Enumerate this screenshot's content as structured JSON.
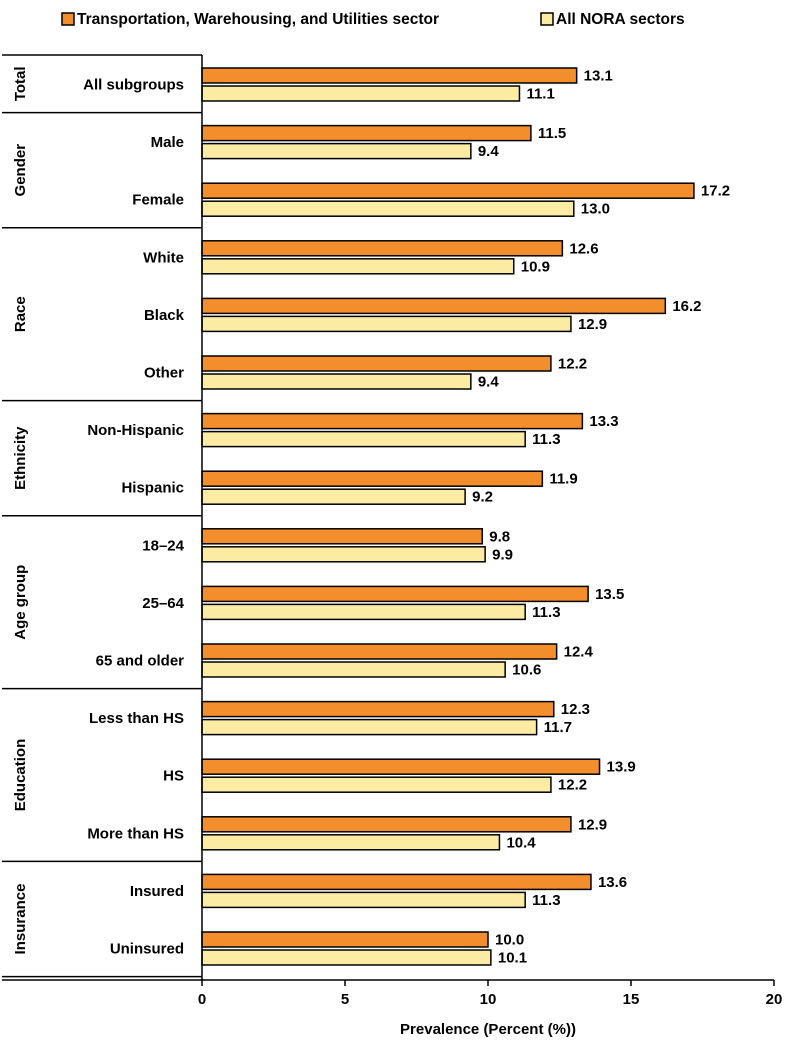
{
  "chart_data": {
    "type": "bar",
    "orientation": "horizontal",
    "xlabel": "Prevalence (Percent (%))",
    "xlim": [
      0,
      20
    ],
    "xticks": [
      0,
      5,
      10,
      15,
      20
    ],
    "legend_position": "top",
    "grid": false,
    "series": [
      {
        "name": "Transportation, Warehousing, and Utilities sector",
        "color": "#f28e2b",
        "values": [
          13.1,
          11.5,
          17.2,
          12.6,
          16.2,
          12.2,
          13.3,
          11.9,
          9.8,
          13.5,
          12.4,
          12.3,
          13.9,
          12.9,
          13.6,
          10.0
        ]
      },
      {
        "name": "All NORA sectors",
        "color": "#fbeba3",
        "values": [
          11.1,
          9.4,
          13.0,
          10.9,
          12.9,
          9.4,
          11.3,
          9.2,
          9.9,
          11.3,
          10.6,
          11.7,
          12.2,
          10.4,
          11.3,
          10.1
        ]
      }
    ],
    "value_labels": [
      [
        "13.1",
        "11.5",
        "17.2",
        "12.6",
        "16.2",
        "12.2",
        "13.3",
        "11.9",
        "9.8",
        "13.5",
        "12.4",
        "12.3",
        "13.9",
        "12.9",
        "13.6",
        "10.0"
      ],
      [
        "11.1",
        "9.4",
        "13.0",
        "10.9",
        "12.9",
        "9.4",
        "11.3",
        "9.2",
        "9.9",
        "11.3",
        "10.6",
        "11.7",
        "12.2",
        "10.4",
        "11.3",
        "10.1"
      ]
    ],
    "categories": [
      "All subgroups",
      "Male",
      "Female",
      "White",
      "Black",
      "Other",
      "Non-Hispanic",
      "Hispanic",
      "18–24",
      "25–64",
      "65 and older",
      "Less than HS",
      "HS",
      "More than HS",
      "Insured",
      "Uninsured"
    ],
    "groups": [
      {
        "label": "Total",
        "size": 1
      },
      {
        "label": "Gender",
        "size": 2
      },
      {
        "label": "Race",
        "size": 3
      },
      {
        "label": "Ethnicity",
        "size": 2
      },
      {
        "label": "Age group",
        "size": 3
      },
      {
        "label": "Education",
        "size": 3
      },
      {
        "label": "Insurance",
        "size": 2
      }
    ]
  }
}
